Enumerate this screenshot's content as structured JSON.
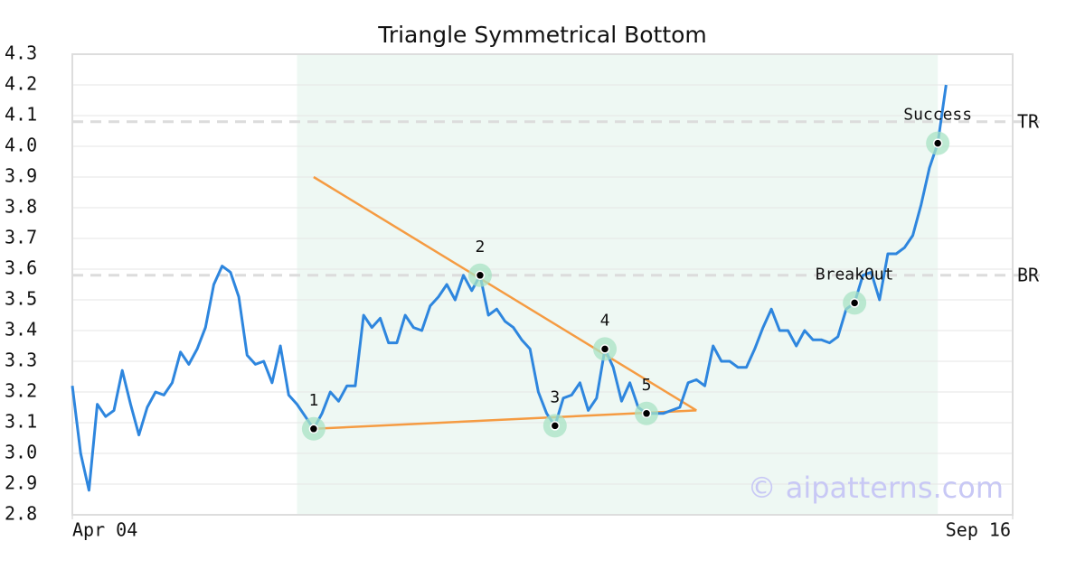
{
  "chart_data": {
    "type": "line",
    "title": "Triangle Symmetrical Bottom",
    "color": "#2e86de",
    "values": [
      3.22,
      3.0,
      2.88,
      3.16,
      3.12,
      3.14,
      3.27,
      3.16,
      3.06,
      3.15,
      3.2,
      3.19,
      3.23,
      3.33,
      3.29,
      3.34,
      3.41,
      3.55,
      3.61,
      3.59,
      3.51,
      3.32,
      3.29,
      3.3,
      3.23,
      3.35,
      3.19,
      3.16,
      3.12,
      3.08,
      3.13,
      3.2,
      3.17,
      3.22,
      3.22,
      3.45,
      3.41,
      3.44,
      3.36,
      3.36,
      3.45,
      3.41,
      3.4,
      3.48,
      3.51,
      3.55,
      3.5,
      3.58,
      3.53,
      3.58,
      3.45,
      3.47,
      3.43,
      3.41,
      3.37,
      3.34,
      3.2,
      3.13,
      3.09,
      3.18,
      3.19,
      3.23,
      3.14,
      3.18,
      3.34,
      3.28,
      3.17,
      3.23,
      3.15,
      3.13,
      3.13,
      3.13,
      3.14,
      3.15,
      3.23,
      3.24,
      3.22,
      3.35,
      3.3,
      3.3,
      3.28,
      3.28,
      3.34,
      3.41,
      3.47,
      3.4,
      3.4,
      3.35,
      3.4,
      3.37,
      3.37,
      3.36,
      3.38,
      3.47,
      3.49,
      3.58,
      3.59,
      3.5,
      3.65,
      3.65,
      3.67,
      3.71,
      3.81,
      3.93,
      4.01,
      4.2
    ],
    "xlim": [
      0,
      113
    ],
    "xticks": [
      {
        "value": 0,
        "label": "Apr 04"
      },
      {
        "value": 113,
        "label": "Sep 16"
      }
    ],
    "ylim": [
      2.8,
      4.3
    ],
    "yticks": [
      2.8,
      2.9,
      {
        "value": 3,
        "label": "3.0"
      },
      3.1,
      3.2,
      3.3,
      3.4,
      3.5,
      3.6,
      3.7,
      3.8,
      3.9,
      {
        "value": 4,
        "label": "4.0"
      },
      4.1,
      4.2,
      4.3
    ],
    "grid": true,
    "highlight": [
      27,
      104
    ],
    "hlines": [
      {
        "label": "TR",
        "value": 4.08
      },
      {
        "label": "BR",
        "value": 3.58
      }
    ],
    "trendlines": [
      {
        "x": [
          29,
          75
        ],
        "y": [
          3.9,
          3.14
        ],
        "color": "#f59b42"
      },
      {
        "x": [
          29,
          75
        ],
        "y": [
          3.08,
          3.14
        ],
        "color": "#f59b42"
      }
    ],
    "points": [
      {
        "label": "1",
        "x": 29,
        "y": 3.08
      },
      {
        "label": "2",
        "x": 49,
        "y": 3.58
      },
      {
        "label": "3",
        "x": 58,
        "y": 3.09
      },
      {
        "label": "4",
        "x": 64,
        "y": 3.34
      },
      {
        "label": "5",
        "x": 69,
        "y": 3.13
      },
      {
        "label": "BreakOut",
        "x": 94,
        "y": 3.49
      },
      {
        "label": "Success",
        "x": 104,
        "y": 4.01
      }
    ],
    "watermark": "© aipatterns.com"
  }
}
